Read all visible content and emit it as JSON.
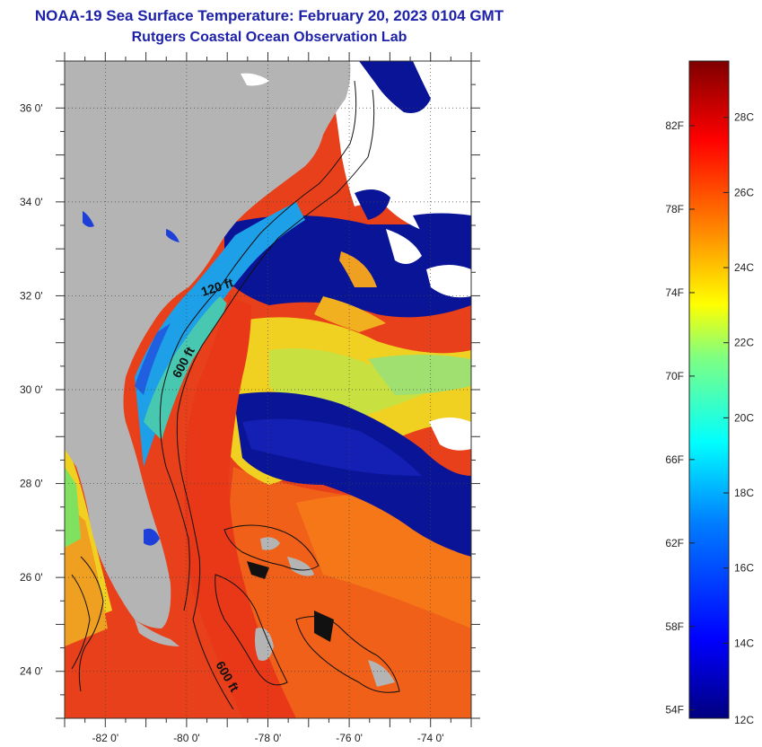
{
  "title": "NOAA-19 Sea Surface Temperature:  February 20, 2023 0104 GMT",
  "subtitle": "Rutgers Coastal Ocean Observation Lab",
  "map": {
    "lat_range": [
      23,
      37
    ],
    "lon_range": [
      -83,
      -73
    ],
    "lat_labels": [
      "36 0'",
      "34 0'",
      "32 0'",
      "30 0'",
      "28 0'",
      "26 0'",
      "24 0'"
    ],
    "lat_values": [
      36,
      34,
      32,
      30,
      28,
      26,
      24
    ],
    "lon_labels": [
      "-82 0'",
      "-80 0'",
      "-78 0'",
      "-76 0'",
      "-74 0'"
    ],
    "lon_values": [
      -82,
      -80,
      -78,
      -76,
      -74
    ],
    "depth_labels": [
      "120 ft",
      "600 ft",
      "600 ft"
    ],
    "colors": {
      "land": "#b4b4b4",
      "cloud": "#ffffff",
      "cold": "#0a1496",
      "warm": "#e8401a"
    }
  },
  "colorbar": {
    "fahrenheit_labels": [
      "82F",
      "78F",
      "74F",
      "70F",
      "66F",
      "62F",
      "58F",
      "54F"
    ],
    "celsius_labels": [
      "28C",
      "26C",
      "24C",
      "22C",
      "20C",
      "18C",
      "16C",
      "14C",
      "12C"
    ],
    "min_c": 12,
    "max_c": 29.5
  }
}
